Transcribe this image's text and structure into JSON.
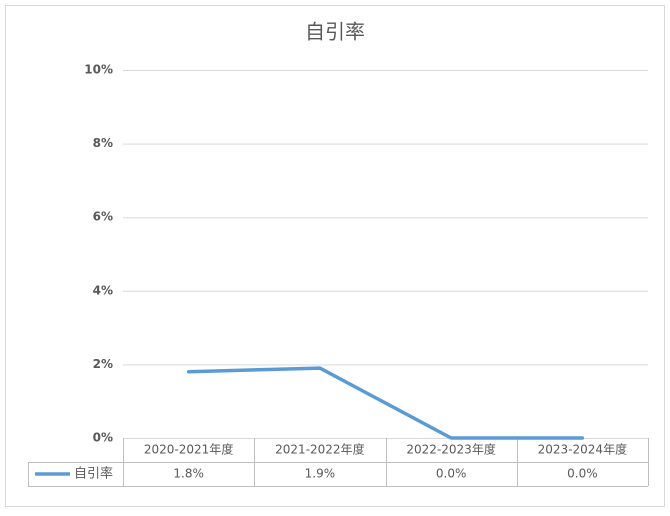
{
  "chart_data": {
    "type": "line",
    "title": "自引率",
    "categories": [
      "2020-2021年度",
      "2021-2022年度",
      "2022-2023年度",
      "2023-2024年度"
    ],
    "series": [
      {
        "name": "自引率",
        "color": "#5b9bd5",
        "values": [
          1.8,
          1.9,
          0,
          0
        ],
        "value_labels": [
          "1.8%",
          "1.9%",
          "0.0%",
          "0.0%"
        ]
      }
    ],
    "ylim": [
      0,
      10
    ],
    "yticks": [
      {
        "value": 0,
        "label": "0%"
      },
      {
        "value": 2,
        "label": "2%"
      },
      {
        "value": 4,
        "label": "4%"
      },
      {
        "value": 6,
        "label": "6%"
      },
      {
        "value": 8,
        "label": "8%"
      },
      {
        "value": 10,
        "label": "10%"
      }
    ],
    "grid": true
  }
}
